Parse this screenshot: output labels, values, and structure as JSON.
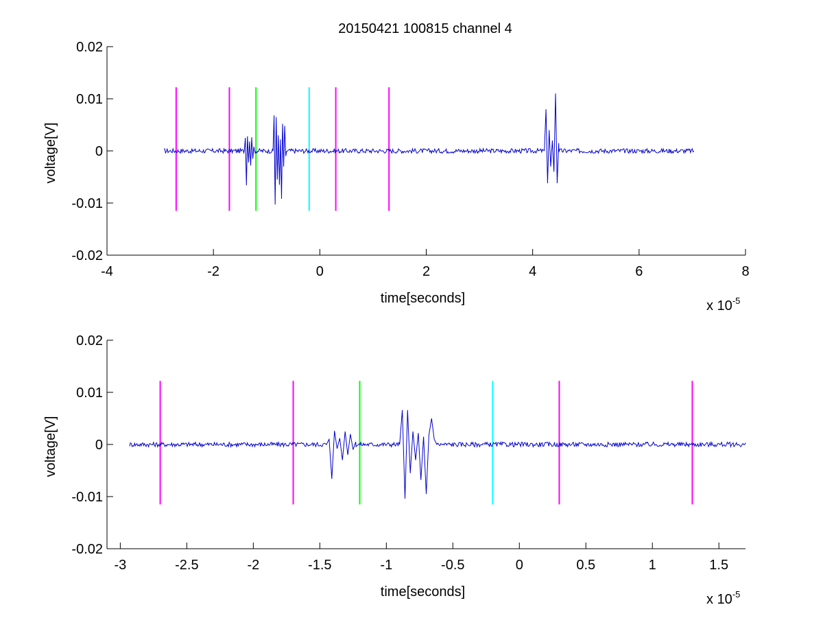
{
  "figure": {
    "title": "20150421 100815 channel 4",
    "background": "#ffffff"
  },
  "chart_data": [
    {
      "type": "line",
      "title": "20150421 100815 channel 4",
      "xlabel": "time[seconds]",
      "ylabel": "voltage[V]",
      "x_exponent_label": "x 10",
      "x_exponent": "-5",
      "xlim": [
        -4,
        8
      ],
      "ylim": [
        -0.02,
        0.02
      ],
      "x_ticks": [
        -4,
        -2,
        0,
        2,
        4,
        6,
        8
      ],
      "x_tick_labels": [
        "-4",
        "-2",
        "0",
        "2",
        "4",
        "6",
        "8"
      ],
      "y_ticks": [
        -0.02,
        -0.01,
        0,
        0.01,
        0.02
      ],
      "y_tick_labels": [
        "-0.02",
        "-0.01",
        "0",
        "0.01",
        "0.02"
      ],
      "grid": false,
      "series": [
        {
          "color": "#0000cc",
          "x_range": [
            -2.93,
            7.03
          ],
          "baseline": 0,
          "noise_amplitude": 0.00045,
          "bursts": [
            {
              "x": [
                -1.42,
                -1.4,
                -1.38,
                -1.36,
                -1.34,
                -1.32,
                -1.3,
                -1.28,
                -1.26,
                -1.24
              ],
              "y": [
                0.0,
                0.0025,
                -0.0066,
                0.0028,
                -0.0022,
                0.0018,
                -0.0028,
                0.0026,
                -0.0015,
                0.0008
              ]
            },
            {
              "x": [
                -0.88,
                -0.86,
                -0.84,
                -0.82,
                -0.8,
                -0.78,
                -0.76,
                -0.74,
                -0.72,
                -0.7,
                -0.68,
                -0.66,
                -0.64
              ],
              "y": [
                0.0,
                0.0068,
                -0.0103,
                0.0065,
                -0.0055,
                0.003,
                -0.0065,
                0.0022,
                -0.0092,
                0.0052,
                -0.003,
                0.0048,
                -0.001
              ]
            },
            {
              "x": [
                4.22,
                4.25,
                4.28,
                4.31,
                4.34,
                4.37,
                4.4,
                4.43,
                4.46,
                4.49
              ],
              "y": [
                0.0,
                0.008,
                -0.0062,
                0.004,
                -0.003,
                0.002,
                -0.004,
                0.011,
                -0.0062,
                0.0015
              ]
            }
          ]
        }
      ],
      "markers": [
        {
          "x": -2.7,
          "color": "#ff00ff",
          "y_range": [
            -0.0115,
            0.0122
          ]
        },
        {
          "x": -1.7,
          "color": "#ff00ff",
          "y_range": [
            -0.0115,
            0.0122
          ]
        },
        {
          "x": -1.2,
          "color": "#00ff00",
          "y_range": [
            -0.0115,
            0.0122
          ]
        },
        {
          "x": -0.2,
          "color": "#00ffff",
          "y_range": [
            -0.0115,
            0.0122
          ]
        },
        {
          "x": 0.3,
          "color": "#ff00ff",
          "y_range": [
            -0.0115,
            0.0122
          ]
        },
        {
          "x": 1.3,
          "color": "#ff00ff",
          "y_range": [
            -0.0115,
            0.0122
          ]
        }
      ]
    },
    {
      "type": "line",
      "title": "",
      "xlabel": "time[seconds]",
      "ylabel": "voltage[V]",
      "x_exponent_label": "x 10",
      "x_exponent": "-5",
      "xlim": [
        -3.1,
        1.7
      ],
      "ylim": [
        -0.02,
        0.02
      ],
      "x_ticks": [
        -3,
        -2.5,
        -2,
        -1.5,
        -1,
        -0.5,
        0,
        0.5,
        1,
        1.5
      ],
      "x_tick_labels": [
        "-3",
        "-2.5",
        "-2",
        "-1.5",
        "-1",
        "-0.5",
        "0",
        "0.5",
        "1",
        "1.5"
      ],
      "y_ticks": [
        -0.02,
        -0.01,
        0,
        0.01,
        0.02
      ],
      "y_tick_labels": [
        "-0.02",
        "-0.01",
        "0",
        "0.01",
        "0.02"
      ],
      "grid": false,
      "series": [
        {
          "color": "#0000cc",
          "x_range": [
            -2.93,
            1.7
          ],
          "baseline": 0,
          "noise_amplitude": 0.00045,
          "bursts": [
            {
              "x": [
                -1.45,
                -1.43,
                -1.41,
                -1.39,
                -1.37,
                -1.35,
                -1.33,
                -1.31,
                -1.29,
                -1.27,
                -1.25,
                -1.23
              ],
              "y": [
                0.0,
                0.001,
                -0.0066,
                0.0026,
                -0.0008,
                0.0012,
                -0.003,
                0.0025,
                -0.002,
                0.002,
                -0.001,
                0.0005
              ]
            },
            {
              "x": [
                -0.9,
                -0.88,
                -0.86,
                -0.84,
                -0.82,
                -0.8,
                -0.78,
                -0.76,
                -0.74,
                -0.72,
                -0.7,
                -0.68,
                -0.66,
                -0.64,
                -0.62
              ],
              "y": [
                0.0,
                0.0066,
                -0.0104,
                0.0066,
                -0.0055,
                0.0025,
                -0.003,
                0.0022,
                -0.0068,
                0.0015,
                -0.0095,
                0.0018,
                0.005,
                0.001,
                0.0
              ]
            }
          ]
        }
      ],
      "markers": [
        {
          "x": -2.7,
          "color": "#ff00ff",
          "y_range": [
            -0.0115,
            0.0122
          ]
        },
        {
          "x": -1.7,
          "color": "#ff00ff",
          "y_range": [
            -0.0115,
            0.0122
          ]
        },
        {
          "x": -1.2,
          "color": "#00ff00",
          "y_range": [
            -0.0115,
            0.0122
          ]
        },
        {
          "x": -0.2,
          "color": "#00ffff",
          "y_range": [
            -0.0115,
            0.0122
          ]
        },
        {
          "x": 0.3,
          "color": "#ff00ff",
          "y_range": [
            -0.0115,
            0.0122
          ]
        },
        {
          "x": 1.3,
          "color": "#ff00ff",
          "y_range": [
            -0.0115,
            0.0122
          ]
        }
      ]
    }
  ]
}
